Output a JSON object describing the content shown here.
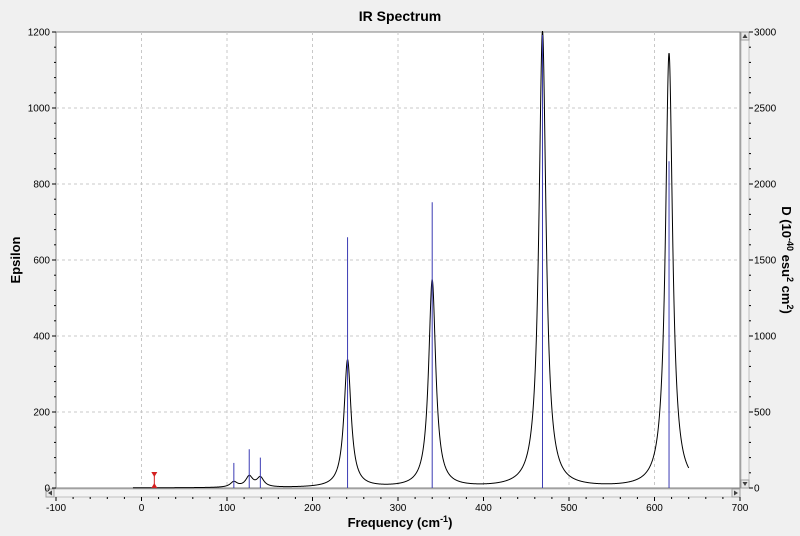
{
  "chart_data": {
    "type": "line",
    "title": "IR Spectrum",
    "xlabel": "Frequency",
    "xlabel_unit": "(cm",
    "xlabel_unit_exp": "-1",
    "xlabel_unit_close": ")",
    "ylabel": "Epsilon",
    "ylabel_right": "D (10",
    "ylabel_right_exp1": "-40",
    "ylabel_right_mid": " esu",
    "ylabel_right_exp2": "2",
    "ylabel_right_mid2": " cm",
    "ylabel_right_exp3": "2",
    "ylabel_right_close": ")",
    "xlim": [
      -100,
      700
    ],
    "ylim": [
      0,
      1200
    ],
    "ylim_right": [
      0,
      3000
    ],
    "x_ticks": [
      -100,
      0,
      100,
      200,
      300,
      400,
      500,
      600,
      700
    ],
    "x_tick_labels": [
      "-100",
      "0",
      "100",
      "200",
      "300",
      "400",
      "500",
      "600",
      "700"
    ],
    "y_ticks": [
      0,
      200,
      400,
      600,
      800,
      1000,
      1200
    ],
    "y_tick_labels": [
      "0",
      "200",
      "400",
      "600",
      "800",
      "1000",
      "1200"
    ],
    "y_right_ticks": [
      0,
      500,
      1000,
      1500,
      2000,
      2500,
      3000
    ],
    "y_right_tick_labels": [
      "0",
      "500",
      "1000",
      "1500",
      "2000",
      "2500",
      "3000"
    ],
    "grid": true,
    "spectrum_range": [
      -10,
      640
    ],
    "peaks": [
      {
        "x": 108,
        "epsilon": 14
      },
      {
        "x": 126,
        "epsilon": 28
      },
      {
        "x": 139,
        "epsilon": 25
      },
      {
        "x": 241,
        "epsilon": 336
      },
      {
        "x": 340,
        "epsilon": 545
      },
      {
        "x": 469,
        "epsilon": 1200
      },
      {
        "x": 617,
        "epsilon": 1143
      }
    ],
    "sticks": [
      {
        "x": 108,
        "d": 165
      },
      {
        "x": 126,
        "d": 255
      },
      {
        "x": 139,
        "d": 200
      },
      {
        "x": 241,
        "d": 1650
      },
      {
        "x": 340,
        "d": 1880
      },
      {
        "x": 469,
        "d": 2980
      },
      {
        "x": 617,
        "d": 2150
      }
    ],
    "marker_x": 15,
    "marker_epsilon": 42,
    "colors": {
      "spectrum": "#000000",
      "sticks": "#3c3cb4",
      "marker": "#d42020",
      "grid": "#c8c8c8",
      "plot_bg": "#ffffff",
      "frame_bg": "#f0f0f0"
    }
  }
}
